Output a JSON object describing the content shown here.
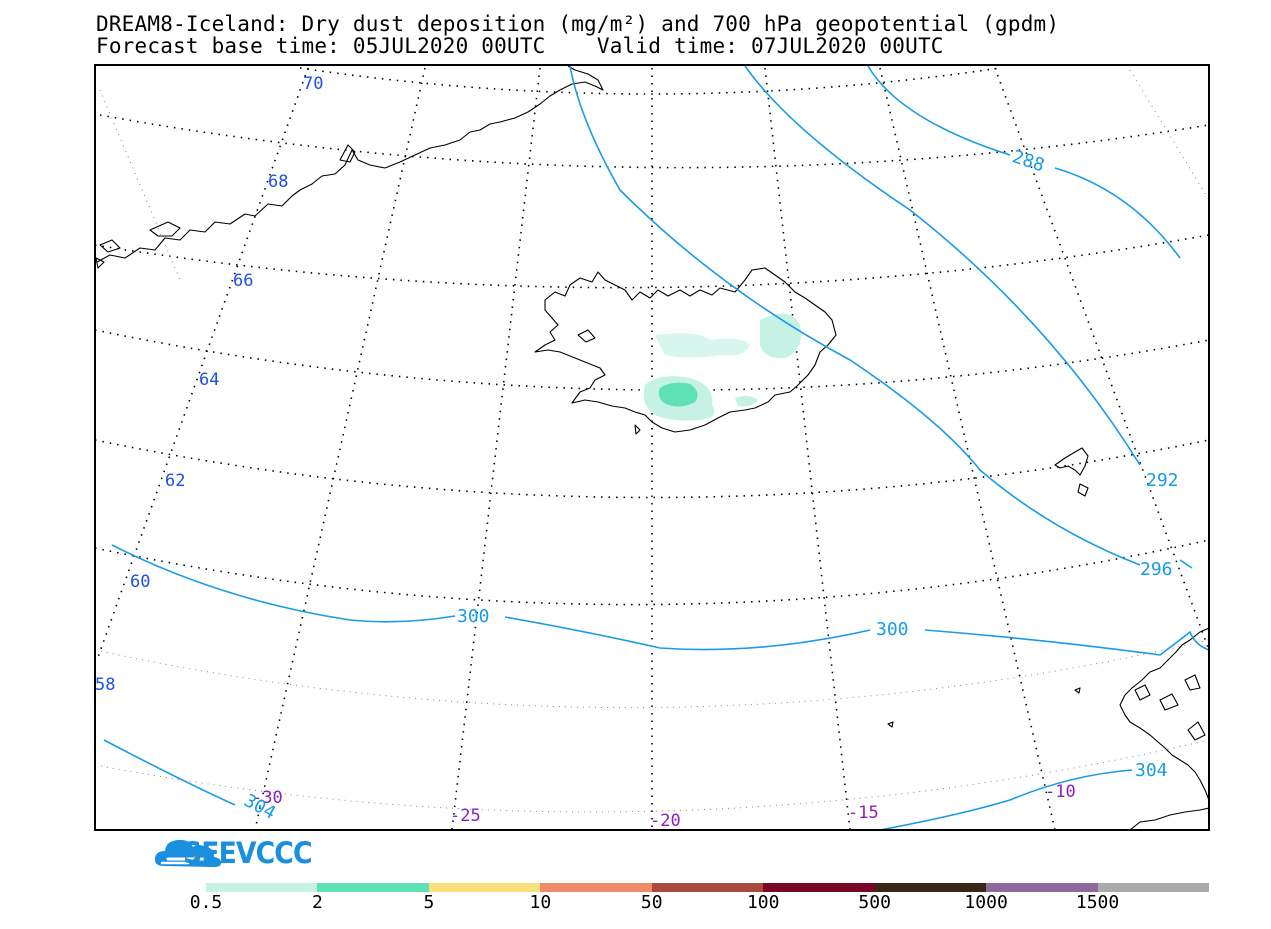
{
  "title": {
    "line1": "DREAM8-Iceland: Dry dust deposition (mg/m²) and 700 hPa geopotential (gpdm)",
    "line2": "Forecast base time: 05JUL2020 00UTC    Valid time: 07JUL2020 00UTC"
  },
  "logo": {
    "text": "SEEVCCC",
    "color": "#1a8fe0"
  },
  "map": {
    "frame_color": "#000000",
    "coast_color": "#000000",
    "graticule_color": "#000000",
    "contour_color": "#1a9be6",
    "lat_label_color": "#1f4fe6",
    "lon_label_color": "#8a1fc0",
    "latitude_labels": [
      "70",
      "68",
      "66",
      "64",
      "62",
      "60",
      "58"
    ],
    "longitude_labels": [
      "-30",
      "-25",
      "-20",
      "-15",
      "-10"
    ],
    "contour_labels": [
      "288",
      "292",
      "296",
      "300",
      "300",
      "304",
      "304"
    ]
  },
  "legend": {
    "colors": [
      "#c6f2e6",
      "#5fe0b5",
      "#f7e17a",
      "#ee8c6a",
      "#a84a40",
      "#7a0626",
      "#3b2514",
      "#8e6a9c",
      "#aaaaaa"
    ],
    "labels": [
      "0.5",
      "2",
      "5",
      "10",
      "50",
      "100",
      "500",
      "1000",
      "1500"
    ]
  }
}
